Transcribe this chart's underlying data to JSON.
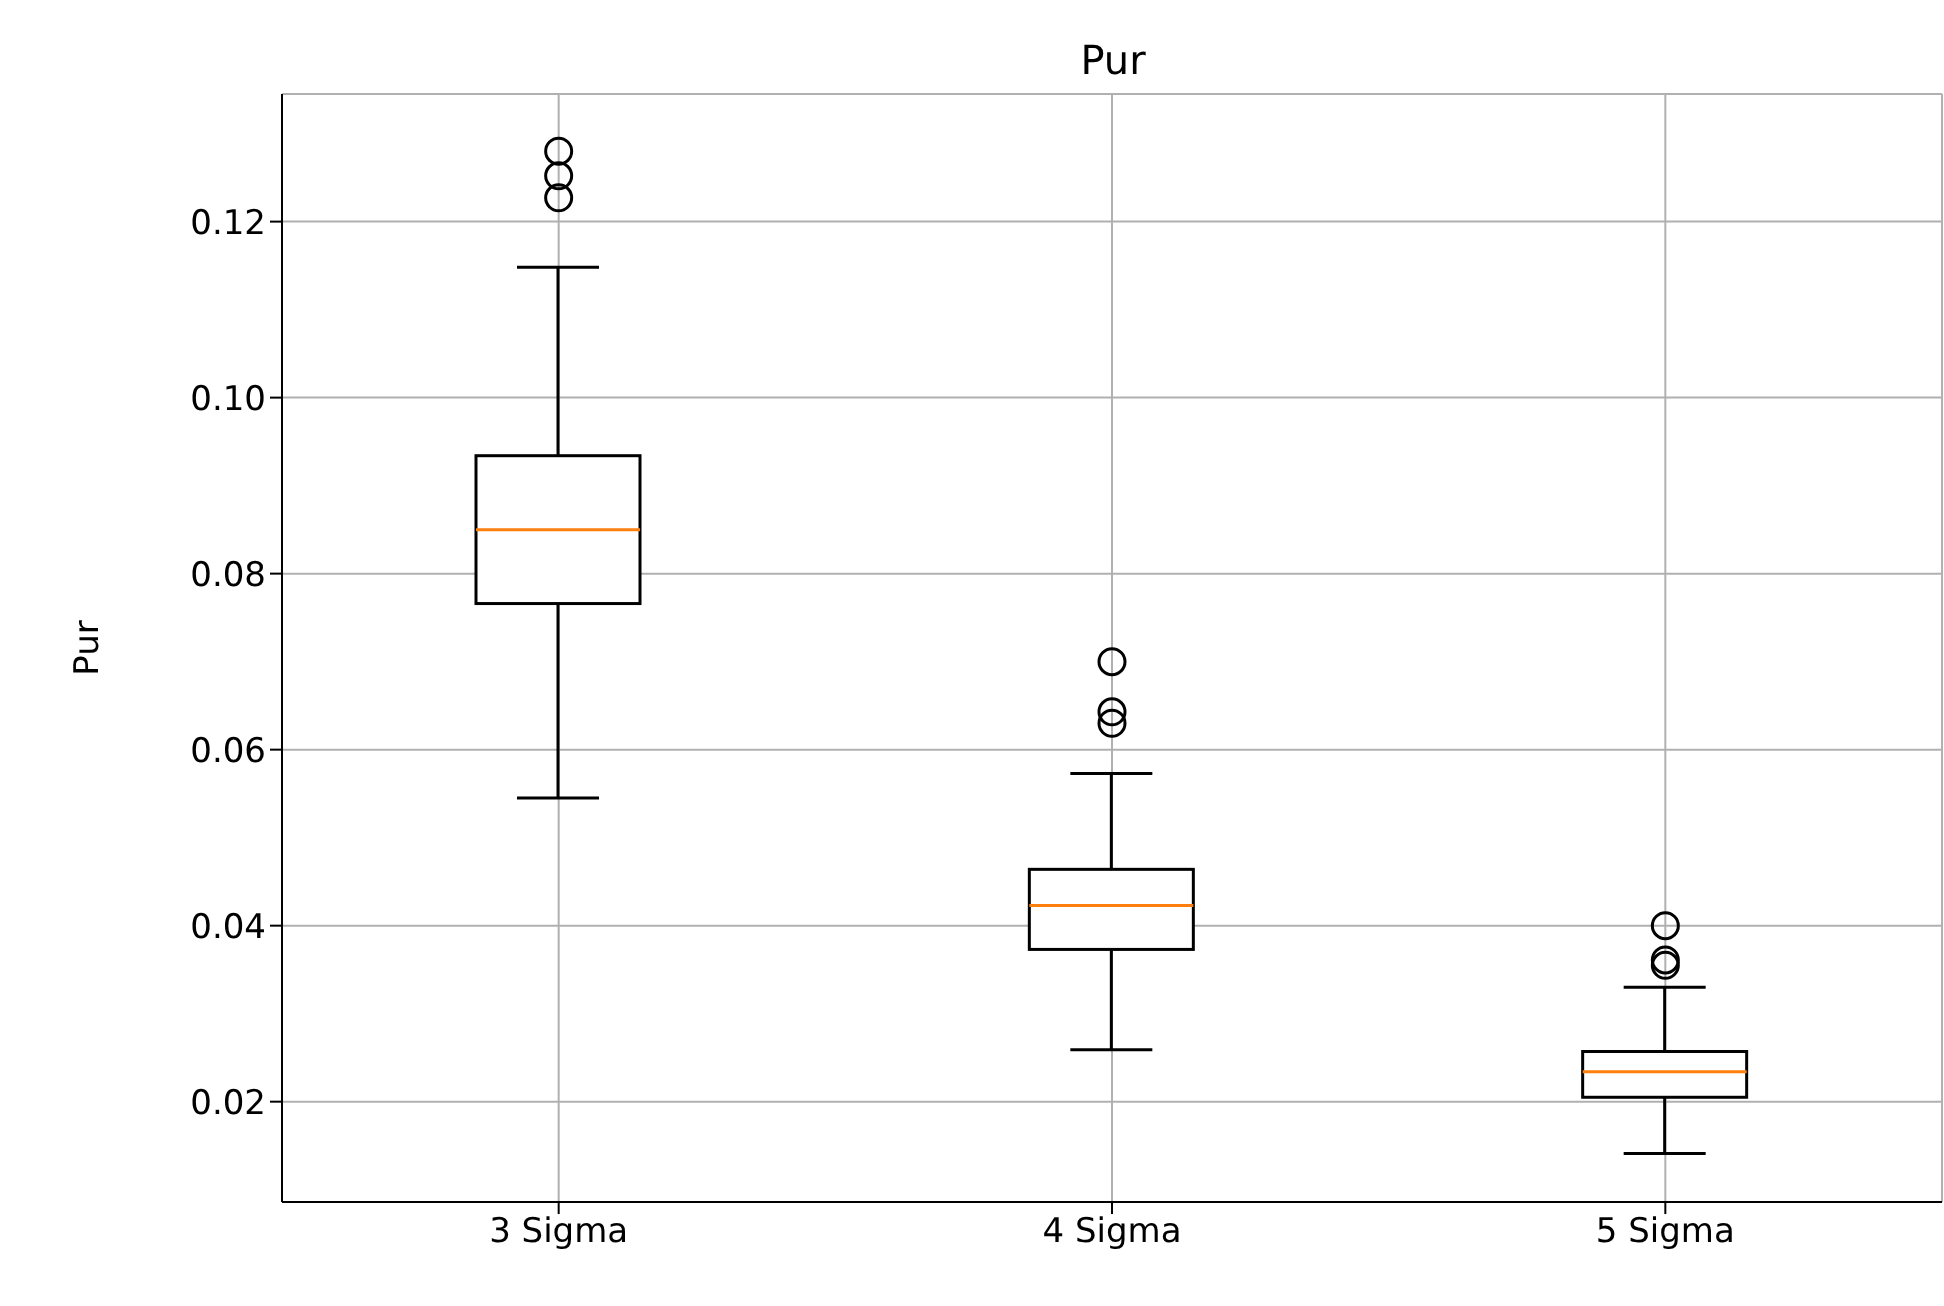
{
  "chart_data": {
    "type": "box",
    "title": "Pur",
    "ylabel": "Pur",
    "categories": [
      "3 Sigma",
      "4 Sigma",
      "5 Sigma"
    ],
    "boxes": [
      {
        "low": 0.0545,
        "q1": 0.0766,
        "median": 0.085,
        "q3": 0.0934,
        "high": 0.1148,
        "outliers": [
          0.128,
          0.1252,
          0.1227
        ]
      },
      {
        "low": 0.0259,
        "q1": 0.0373,
        "median": 0.0423,
        "q3": 0.0464,
        "high": 0.0573,
        "outliers": [
          0.07,
          0.0643,
          0.063
        ]
      },
      {
        "low": 0.0141,
        "q1": 0.0205,
        "median": 0.0234,
        "q3": 0.0257,
        "high": 0.033,
        "outliers": [
          0.04,
          0.0361,
          0.0355
        ]
      }
    ],
    "color": "#000000",
    "ylim": [
      0.0086,
      0.1345
    ],
    "yticks": [
      {
        "value": 0.02,
        "label": "0.02"
      },
      {
        "value": 0.04,
        "label": "0.04"
      },
      {
        "value": 0.06,
        "label": "0.06"
      },
      {
        "value": 0.08,
        "label": "0.08"
      },
      {
        "value": 0.1,
        "label": "0.10"
      },
      {
        "value": 0.12,
        "label": "0.12"
      }
    ],
    "grid": true
  }
}
